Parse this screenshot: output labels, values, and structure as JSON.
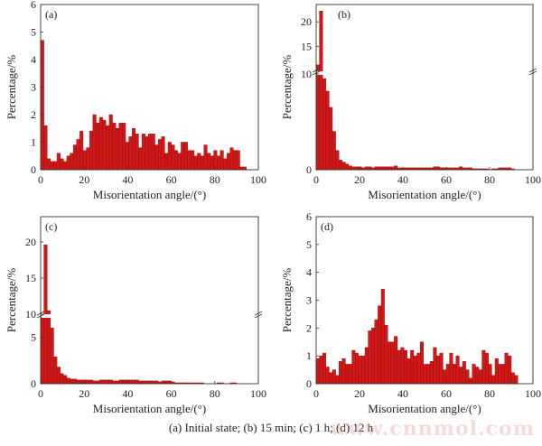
{
  "figure_caption": "(a) Initial state; (b) 15 min; (c) 1 h; (d) 12 h",
  "watermark": "www.cnnmol.com",
  "colors": {
    "bar": "#d01818",
    "bar_edge": "#8a0a0a",
    "axis": "#333333"
  },
  "chart_data": [
    {
      "type": "bar",
      "panel_label": "(a)",
      "title": "Initial state",
      "xlabel": "Misorientation angle/(°)",
      "ylabel": "Percentage/%",
      "xlim": [
        0,
        100
      ],
      "ylim": [
        0,
        6
      ],
      "xticks": [
        0,
        20,
        40,
        60,
        80,
        100
      ],
      "yticks": [
        0,
        1,
        2,
        3,
        4,
        5,
        6
      ],
      "bin_width": 1.5,
      "x_start": 0,
      "values": [
        4.7,
        1.6,
        0.4,
        0.3,
        0.3,
        0.6,
        0.4,
        0.3,
        0.5,
        0.6,
        0.9,
        1.1,
        1.4,
        0.7,
        0.8,
        1.4,
        2.0,
        1.7,
        1.9,
        1.8,
        1.6,
        2.0,
        1.7,
        1.5,
        1.7,
        1.7,
        1.0,
        1.2,
        1.5,
        1.3,
        0.8,
        1.3,
        1.2,
        1.3,
        1.3,
        0.9,
        1.1,
        1.2,
        0.6,
        1.0,
        0.9,
        0.7,
        0.6,
        1.0,
        1.0,
        0.7,
        0.7,
        0.5,
        0.6,
        0.5,
        0.9,
        0.6,
        0.5,
        0.7,
        0.5,
        0.7,
        0.4,
        0.6,
        0.8,
        0.7,
        0.7,
        0.1,
        0.1
      ],
      "axis_break": null
    },
    {
      "type": "bar",
      "panel_label": "(b)",
      "title": "15 min",
      "xlabel": "Misorientation angle/(°)",
      "ylabel": "Percentage/%",
      "xlim": [
        0,
        100
      ],
      "ylim": [
        0,
        23.5
      ],
      "xticks": [
        0,
        20,
        40,
        60,
        80,
        100
      ],
      "yticks_lower": [
        0
      ],
      "yticks_upper": [
        10,
        15,
        20
      ],
      "bin_width": 1.5,
      "x_start": 0,
      "values": [
        11.3,
        22.2,
        9.5,
        8.2,
        6.5,
        4.0,
        2.0,
        1.0,
        0.8,
        0.6,
        0.4,
        0.3,
        0.3,
        0.3,
        0.2,
        0.3,
        0.3,
        0.2,
        0.3,
        0.3,
        0.3,
        0.3,
        0.3,
        0.3,
        0.4,
        0.2,
        0.2,
        0.2,
        0.2,
        0.2,
        0.2,
        0.2,
        0.2,
        0.2,
        0.2,
        0.2,
        0.3,
        0.3,
        0.2,
        0.2,
        0.2,
        0.2,
        0.2,
        0.2,
        0.3,
        0.2,
        0.2,
        0.2,
        0.1,
        0.1,
        0.1,
        0.1,
        0.1,
        0.0,
        0.1,
        0.1,
        0.2,
        0.2,
        0.2,
        0.2,
        0.1
      ],
      "axis_break": {
        "lower_range": [
          0,
          10
        ],
        "upper_range": [
          10,
          23.5
        ]
      }
    },
    {
      "type": "bar",
      "panel_label": "(c)",
      "title": "1 h",
      "xlabel": "Misorientation angle/(°)",
      "ylabel": "Percentage/%",
      "xlim": [
        0,
        100
      ],
      "ylim": [
        0,
        23.5
      ],
      "xticks": [
        0,
        20,
        40,
        60,
        80,
        100
      ],
      "yticks_lower": [
        0,
        5
      ],
      "yticks_upper": [
        10,
        15,
        20
      ],
      "bin_width": 1.5,
      "x_start": 0,
      "values": [
        7.2,
        19.6,
        10.5,
        6.0,
        2.9,
        1.8,
        1.1,
        0.9,
        0.6,
        0.5,
        0.5,
        0.4,
        0.4,
        0.4,
        0.4,
        0.4,
        0.3,
        0.3,
        0.4,
        0.4,
        0.4,
        0.4,
        0.3,
        0.3,
        0.4,
        0.4,
        0.4,
        0.4,
        0.4,
        0.4,
        0.3,
        0.3,
        0.3,
        0.3,
        0.3,
        0.3,
        0.2,
        0.3,
        0.3,
        0.3,
        0.2,
        0.1,
        0.1,
        0.1,
        0.1,
        0.1,
        0.1,
        0.1,
        0.1,
        0.1,
        0.0,
        0.0,
        0.0,
        0.0,
        0.1,
        0.1,
        0.0,
        0.0,
        0.1,
        0.1
      ],
      "axis_break": {
        "lower_range": [
          0,
          7.2
        ],
        "upper_range": [
          10,
          23.5
        ]
      }
    },
    {
      "type": "bar",
      "panel_label": "(d)",
      "title": "12 h",
      "xlabel": "Misorientation angle/(°)",
      "ylabel": "Percentage/%",
      "xlim": [
        0,
        100
      ],
      "ylim": [
        0,
        6
      ],
      "xticks": [
        0,
        20,
        40,
        60,
        80,
        100
      ],
      "yticks": [
        0,
        1,
        2,
        3,
        4,
        5,
        6
      ],
      "bin_width": 1.5,
      "x_start": 0,
      "values": [
        0.9,
        1.0,
        1.1,
        0.6,
        0.4,
        0.5,
        0.3,
        0.8,
        0.9,
        0.7,
        0.7,
        1.2,
        1.1,
        1.0,
        1.0,
        1.3,
        1.9,
        2.0,
        2.3,
        2.8,
        3.4,
        2.1,
        1.5,
        1.5,
        1.7,
        1.2,
        1.3,
        1.2,
        0.9,
        1.2,
        1.0,
        1.1,
        1.5,
        0.7,
        0.7,
        0.8,
        1.3,
        1.0,
        1.1,
        0.5,
        0.7,
        1.1,
        0.7,
        1.0,
        0.6,
        0.8,
        0.5,
        0.2,
        0.7,
        0.6,
        0.5,
        1.2,
        1.1,
        0.7,
        0.3,
        0.9,
        0.7,
        0.7,
        1.1,
        1.0,
        0.4,
        0.3
      ],
      "axis_break": null
    }
  ]
}
